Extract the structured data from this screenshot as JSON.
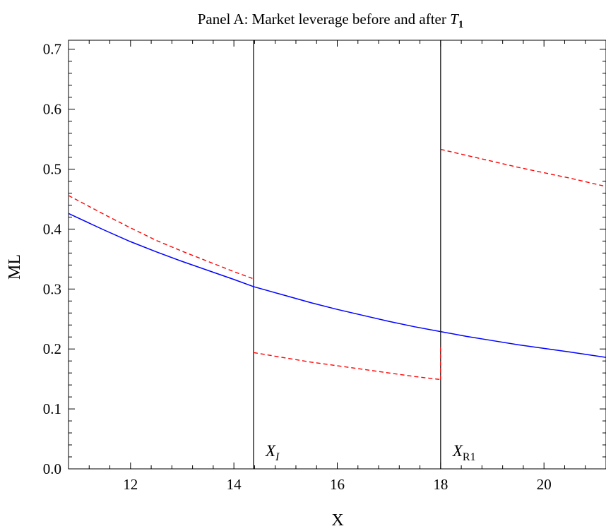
{
  "chart_data": {
    "type": "line",
    "title": "Panel A: Market leverage before and after ",
    "title_symbol": "T",
    "title_symbol_subscript": "1",
    "xlabel": "X",
    "ylabel": "ML",
    "xlim": [
      10.8,
      21.2
    ],
    "ylim": [
      0.0,
      0.715
    ],
    "xticks": [
      {
        "value": 12,
        "label": "12"
      },
      {
        "value": 14,
        "label": "14"
      },
      {
        "value": 16,
        "label": "16"
      },
      {
        "value": 18,
        "label": "18"
      },
      {
        "value": 20,
        "label": "20"
      }
    ],
    "yticks": [
      {
        "value": 0.0,
        "label": "0.0"
      },
      {
        "value": 0.1,
        "label": "0.1"
      },
      {
        "value": 0.2,
        "label": "0.2"
      },
      {
        "value": 0.3,
        "label": "0.3"
      },
      {
        "value": 0.4,
        "label": "0.4"
      },
      {
        "value": 0.5,
        "label": "0.5"
      },
      {
        "value": 0.6,
        "label": "0.6"
      },
      {
        "value": 0.7,
        "label": "0.7"
      }
    ],
    "grid": false,
    "series": [
      {
        "color": "#0000ff",
        "style": "solid",
        "x": [
          10.8,
          11.5,
          12.0,
          12.5,
          13.0,
          13.5,
          14.0,
          14.38,
          15.0,
          15.5,
          16.0,
          16.5,
          17.0,
          17.5,
          18.0,
          18.5,
          19.0,
          19.5,
          20.0,
          20.5,
          21.2
        ],
        "y": [
          0.426,
          0.398,
          0.379,
          0.362,
          0.346,
          0.331,
          0.316,
          0.304,
          0.289,
          0.277,
          0.266,
          0.256,
          0.246,
          0.237,
          0.229,
          0.221,
          0.214,
          0.207,
          0.201,
          0.195,
          0.186
        ]
      },
      {
        "color": "#ff0000",
        "style": "dashed",
        "x": [
          10.8,
          11.5,
          12.0,
          12.5,
          13.0,
          13.5,
          14.0,
          14.38
        ],
        "y": [
          0.456,
          0.424,
          0.402,
          0.381,
          0.363,
          0.346,
          0.329,
          0.317
        ]
      },
      {
        "color": "#ff0000",
        "style": "dashed",
        "x": [
          14.38,
          15.0,
          15.5,
          16.0,
          16.5,
          17.0,
          17.5,
          18.0
        ],
        "y": [
          0.194,
          0.185,
          0.178,
          0.172,
          0.166,
          0.16,
          0.154,
          0.149
        ]
      },
      {
        "color": "#ff0000",
        "style": "dashed",
        "x": [
          18.0,
          18.0
        ],
        "y": [
          0.149,
          0.206
        ]
      },
      {
        "color": "#ff0000",
        "style": "dashed",
        "x": [
          18.0,
          18.5,
          19.0,
          19.5,
          20.0,
          20.5,
          21.2
        ],
        "y": [
          0.533,
          0.523,
          0.513,
          0.503,
          0.494,
          0.485,
          0.471
        ]
      }
    ],
    "vlines": [
      {
        "x": 14.38,
        "label": "X",
        "subscript": "I",
        "subscript_italic": true
      },
      {
        "x": 18.0,
        "label": "X",
        "subscript": "R1",
        "subscript_italic": false
      }
    ]
  }
}
